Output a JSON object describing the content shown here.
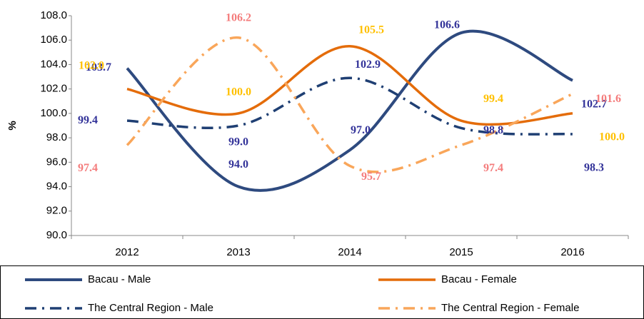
{
  "chart_data": {
    "type": "line",
    "y_label": "%",
    "categories": [
      "2012",
      "2013",
      "2014",
      "2015",
      "2016"
    ],
    "ylim": [
      90,
      108
    ],
    "yticks": [
      {
        "value": 90,
        "label": "90.0"
      },
      {
        "value": 92,
        "label": "92.0"
      },
      {
        "value": 94,
        "label": "94.0"
      },
      {
        "value": 96,
        "label": "96.0"
      },
      {
        "value": 98,
        "label": "98.0"
      },
      {
        "value": 100,
        "label": "100.0"
      },
      {
        "value": 102,
        "label": "102.0"
      },
      {
        "value": 104,
        "label": "104.0"
      },
      {
        "value": 106,
        "label": "106.0"
      },
      {
        "value": 108,
        "label": "108.0"
      }
    ],
    "legend_position": "bottom",
    "series": [
      {
        "name": "Bacau - Male",
        "color": "#2e4a7f",
        "label_color": "#333399",
        "style": "solid",
        "values": [
          103.7,
          94.0,
          97.0,
          106.6,
          102.7
        ],
        "value_labels": [
          "103.7",
          "94.0",
          "97.0",
          "106.6",
          "102.7"
        ]
      },
      {
        "name": "Bacau - Female",
        "color": "#e46c0a",
        "label_color": "#ffc000",
        "style": "solid",
        "values": [
          102.0,
          100.0,
          105.5,
          99.4,
          100.0
        ],
        "value_labels": [
          "102.0",
          "100.0",
          "105.5",
          "99.4",
          "100.0"
        ]
      },
      {
        "name": "The Central Region  - Male",
        "color": "#1f3f73",
        "label_color": "#333399",
        "style": "dashdot",
        "values": [
          99.4,
          99.0,
          102.9,
          98.8,
          98.3
        ],
        "value_labels": [
          "99.4",
          "99.0",
          "102.9",
          "98.8",
          "98.3"
        ]
      },
      {
        "name": "The Central Region  - Female",
        "color": "#f9a65a",
        "label_color": "#f47c7c",
        "style": "dashdot",
        "values": [
          97.4,
          106.2,
          95.7,
          97.4,
          101.6
        ],
        "value_labels": [
          "97.4",
          "106.2",
          "95.7",
          "97.4",
          "101.6"
        ]
      }
    ]
  }
}
